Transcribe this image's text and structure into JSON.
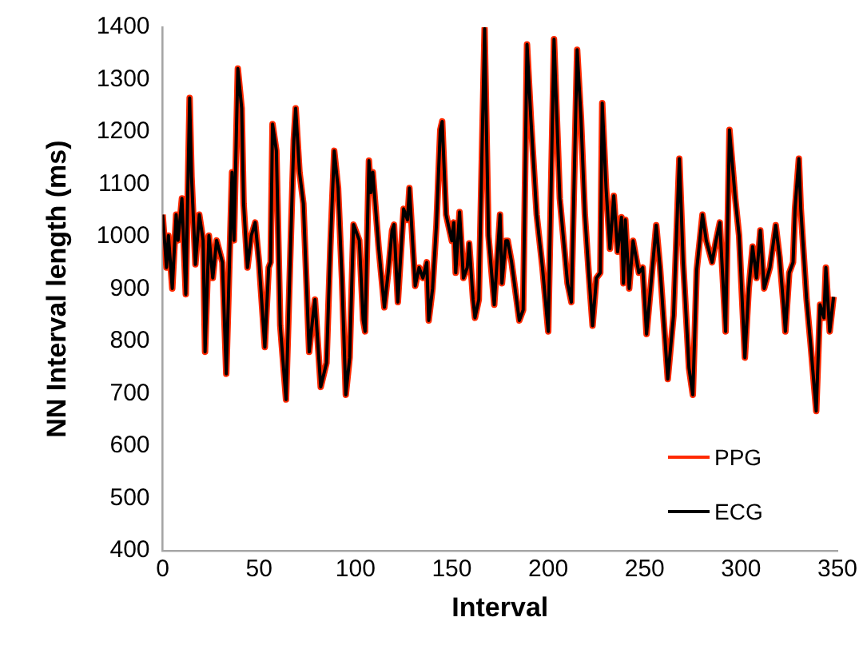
{
  "chart_data": {
    "type": "line",
    "xlabel": "Interval",
    "ylabel": "NN Interval length (ms)",
    "x": [
      0,
      2,
      3,
      5,
      7,
      8,
      10,
      12,
      14,
      15,
      17,
      19,
      21,
      22,
      24,
      26,
      28,
      31,
      33,
      36,
      37,
      39,
      41,
      42,
      44,
      46,
      48,
      50,
      53,
      55,
      56,
      57,
      59,
      61,
      64,
      68,
      69,
      71,
      73,
      76,
      78,
      79,
      82,
      85,
      87,
      89,
      91,
      93,
      95,
      97,
      99,
      102,
      104,
      105,
      107,
      108,
      109,
      112,
      115,
      117,
      119,
      120,
      122,
      125,
      127,
      128,
      131,
      133,
      135,
      137,
      138,
      140,
      142,
      144,
      145,
      147,
      150,
      151,
      152,
      154,
      156,
      158,
      159,
      161,
      162,
      164,
      167,
      169,
      172,
      175,
      176,
      178,
      179,
      181,
      185,
      187,
      189,
      191,
      194,
      197,
      200,
      203,
      206,
      207,
      210,
      212,
      215,
      217,
      219,
      221,
      223,
      225,
      227,
      228,
      230,
      232,
      234,
      236,
      238,
      239,
      240,
      242,
      244,
      247,
      249,
      251,
      256,
      258,
      262,
      265,
      268,
      270,
      273,
      275,
      277,
      280,
      282,
      285,
      287,
      289,
      292,
      294,
      297,
      299,
      302,
      304,
      306,
      308,
      310,
      312,
      315,
      318,
      320,
      322,
      323,
      325,
      327,
      328,
      330,
      331,
      334,
      336,
      339,
      341,
      343,
      344,
      346,
      348
    ],
    "series": [
      {
        "name": "PPG",
        "color": "#ff2a00",
        "values": [
          1042,
          941,
          1002,
          901,
          1042,
          993,
          1073,
          890,
          1265,
          1114,
          947,
          1042,
          993,
          780,
          1002,
          921,
          993,
          951,
          738,
          1123,
          993,
          1321,
          1245,
          1063,
          941,
          1002,
          1027,
          951,
          789,
          941,
          951,
          1215,
          1164,
          830,
          689,
          1184,
          1245,
          1123,
          1063,
          780,
          850,
          880,
          713,
          759,
          981,
          1164,
          1093,
          921,
          698,
          769,
          1023,
          993,
          841,
          819,
          1145,
          1084,
          1123,
          981,
          865,
          932,
          1012,
          1023,
          875,
          1053,
          1032,
          1093,
          906,
          941,
          921,
          951,
          840,
          901,
          1022,
          1204,
          1220,
          1042,
          992,
          1027,
          931,
          1047,
          921,
          941,
          987,
          880,
          845,
          880,
          1397,
          1002,
          870,
          1042,
          911,
          992,
          992,
          951,
          840,
          860,
          1367,
          1225,
          1042,
          941,
          819,
          1377,
          1073,
          1032,
          911,
          875,
          1357,
          1225,
          1042,
          931,
          830,
          921,
          931,
          1255,
          1093,
          977,
          1078,
          971,
          1037,
          911,
          1032,
          901,
          992,
          931,
          941,
          814,
          1022,
          941,
          728,
          850,
          1149,
          951,
          749,
          698,
          936,
          1042,
          992,
          951,
          992,
          1027,
          819,
          1204,
          1073,
          1002,
          769,
          901,
          981,
          921,
          1012,
          901,
          941,
          1022,
          961,
          870,
          819,
          931,
          951,
          1053,
          1149,
          1053,
          880,
          799,
          667,
          870,
          845,
          941,
          819,
          885
        ]
      },
      {
        "name": "ECG",
        "color": "#000000",
        "values": [
          1042,
          941,
          1002,
          901,
          1042,
          993,
          1073,
          890,
          1265,
          1114,
          947,
          1042,
          993,
          780,
          1002,
          921,
          993,
          951,
          738,
          1123,
          993,
          1321,
          1245,
          1063,
          941,
          1002,
          1027,
          951,
          789,
          941,
          951,
          1215,
          1164,
          830,
          689,
          1184,
          1245,
          1123,
          1063,
          780,
          850,
          880,
          713,
          759,
          981,
          1164,
          1093,
          921,
          698,
          769,
          1023,
          993,
          841,
          819,
          1145,
          1084,
          1123,
          981,
          865,
          932,
          1012,
          1023,
          875,
          1053,
          1032,
          1093,
          906,
          941,
          921,
          951,
          840,
          901,
          1022,
          1204,
          1220,
          1042,
          992,
          1027,
          931,
          1047,
          921,
          941,
          987,
          880,
          845,
          880,
          1397,
          1002,
          870,
          1042,
          911,
          992,
          992,
          951,
          840,
          860,
          1367,
          1225,
          1042,
          941,
          819,
          1377,
          1073,
          1032,
          911,
          875,
          1357,
          1225,
          1042,
          931,
          830,
          921,
          931,
          1255,
          1093,
          977,
          1078,
          971,
          1037,
          911,
          1032,
          901,
          992,
          931,
          941,
          814,
          1022,
          941,
          728,
          850,
          1149,
          951,
          749,
          698,
          936,
          1042,
          992,
          951,
          992,
          1027,
          819,
          1204,
          1073,
          1002,
          769,
          901,
          981,
          921,
          1012,
          901,
          941,
          1022,
          961,
          870,
          819,
          931,
          951,
          1053,
          1149,
          1053,
          880,
          799,
          667,
          870,
          845,
          941,
          819,
          885
        ]
      }
    ],
    "xlim": [
      0,
      350
    ],
    "xticks": [
      0,
      50,
      100,
      150,
      200,
      250,
      300,
      350
    ],
    "ylim": [
      400,
      1400
    ],
    "yticks": [
      400,
      500,
      600,
      700,
      800,
      900,
      1000,
      1100,
      1200,
      1300,
      1400
    ],
    "grid": false,
    "legend": "bottom right",
    "marker": "none",
    "line_style": "solid"
  }
}
